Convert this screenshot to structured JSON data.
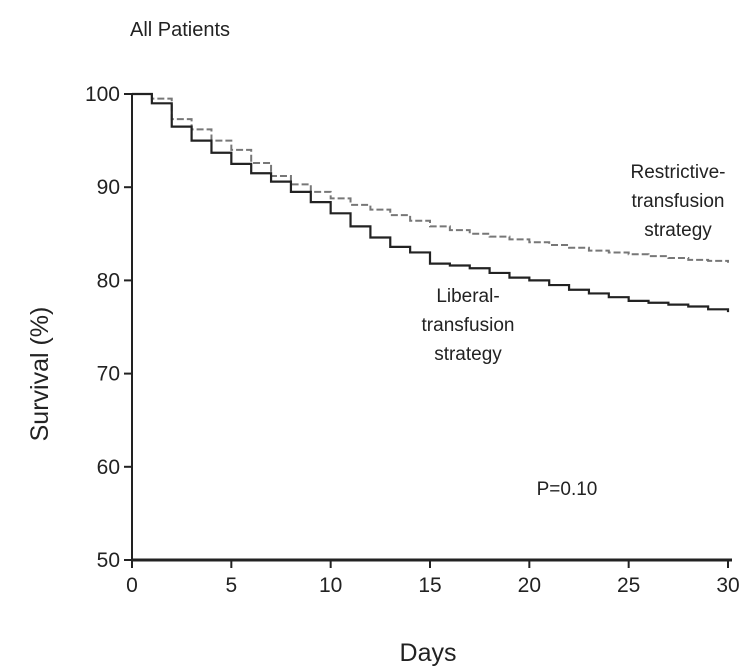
{
  "chart_data": {
    "type": "line",
    "title": "All Patients",
    "xlabel": "Days",
    "ylabel": "Survival (%)",
    "xlim": [
      0,
      30
    ],
    "ylim": [
      50,
      100
    ],
    "x_ticks": [
      0,
      5,
      10,
      15,
      20,
      25,
      30
    ],
    "y_ticks": [
      50,
      60,
      70,
      80,
      90,
      100
    ],
    "grid": false,
    "annotation": "P=0.10",
    "series": [
      {
        "name": "Restrictive-transfusion strategy",
        "label_lines": [
          "Restrictive-",
          "transfusion",
          "strategy"
        ],
        "style": "dashed",
        "color": "#777777",
        "x": [
          0,
          1,
          2,
          3,
          4,
          5,
          6,
          7,
          8,
          9,
          10,
          11,
          12,
          13,
          14,
          15,
          16,
          17,
          18,
          19,
          20,
          21,
          22,
          23,
          24,
          25,
          26,
          27,
          28,
          29,
          30
        ],
        "y": [
          100,
          99.5,
          97.3,
          96.2,
          95.0,
          94.0,
          92.6,
          91.2,
          90.3,
          89.5,
          88.8,
          88.1,
          87.6,
          87.0,
          86.4,
          85.8,
          85.4,
          85.0,
          84.7,
          84.4,
          84.1,
          83.8,
          83.5,
          83.2,
          83.0,
          82.8,
          82.6,
          82.4,
          82.2,
          82.1,
          81.9
        ]
      },
      {
        "name": "Liberal-transfusion strategy",
        "label_lines": [
          "Liberal-",
          "transfusion",
          "strategy"
        ],
        "style": "solid",
        "color": "#222222",
        "x": [
          0,
          1,
          2,
          3,
          4,
          5,
          6,
          7,
          8,
          9,
          10,
          11,
          12,
          13,
          14,
          15,
          16,
          17,
          18,
          19,
          20,
          21,
          22,
          23,
          24,
          25,
          26,
          27,
          28,
          29,
          30
        ],
        "y": [
          100,
          99.0,
          96.5,
          95.0,
          93.7,
          92.5,
          91.5,
          90.6,
          89.5,
          88.4,
          87.2,
          85.8,
          84.6,
          83.6,
          83.0,
          81.8,
          81.6,
          81.3,
          80.8,
          80.3,
          80.0,
          79.5,
          79.0,
          78.6,
          78.2,
          77.8,
          77.6,
          77.4,
          77.2,
          76.9,
          76.6
        ]
      }
    ]
  }
}
